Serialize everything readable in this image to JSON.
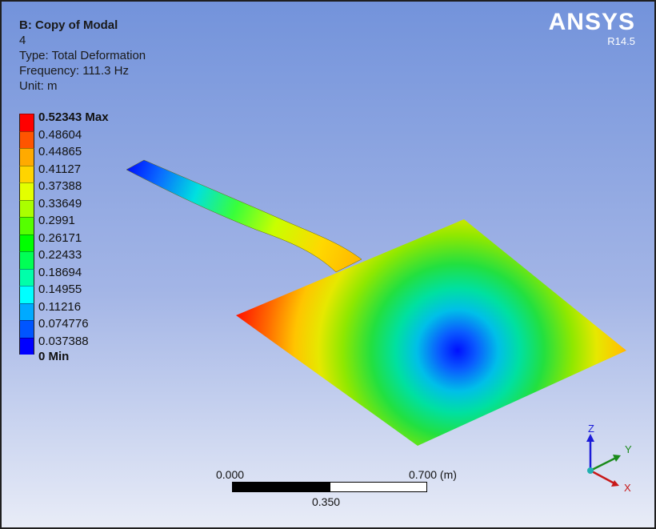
{
  "info": {
    "title": "B: Copy of Modal",
    "mode": "4",
    "type": "Type: Total Deformation",
    "frequency": "Frequency: 111.3 Hz",
    "unit": "Unit: m"
  },
  "brand": {
    "name": "ANSYS",
    "version": "R14.5"
  },
  "legend": {
    "labels": [
      "0.52343 Max",
      "0.48604",
      "0.44865",
      "0.41127",
      "0.37388",
      "0.33649",
      "0.2991",
      "0.26171",
      "0.22433",
      "0.18694",
      "0.14955",
      "0.11216",
      "0.074776",
      "0.037388",
      "0 Min"
    ],
    "colors": [
      "#ff0000",
      "#ff5500",
      "#ffaa00",
      "#ffd400",
      "#e3ff00",
      "#aaff00",
      "#55ff00",
      "#00ff00",
      "#00ff55",
      "#00ffaa",
      "#00ffff",
      "#00aaff",
      "#0055ff",
      "#0000ff"
    ]
  },
  "scale_bar": {
    "left_label": "0.000",
    "mid_label": "0.350",
    "right_label": "0.700 (m)"
  },
  "triad": {
    "x": "X",
    "y": "Y",
    "z": "Z"
  }
}
